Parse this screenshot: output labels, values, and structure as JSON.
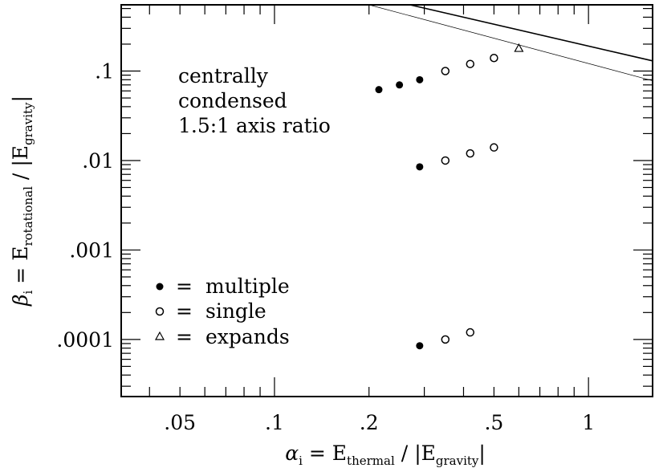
{
  "chart_data": {
    "type": "scatter",
    "x_scale": "log",
    "y_scale": "log",
    "xlim": [
      0.0325,
      1.6
    ],
    "ylim": [
      2.3e-05,
      0.55
    ],
    "x_ticks": [
      {
        "value": 0.05,
        "label": ".05"
      },
      {
        "value": 0.1,
        "label": ".1"
      },
      {
        "value": 0.2,
        "label": ".2"
      },
      {
        "value": 0.5,
        "label": ".5"
      },
      {
        "value": 1,
        "label": "1"
      }
    ],
    "y_ticks": [
      {
        "value": 0.1,
        "label": ".1"
      },
      {
        "value": 0.01,
        "label": ".01"
      },
      {
        "value": 0.001,
        "label": ".001"
      },
      {
        "value": 0.0001,
        "label": ".0001"
      }
    ],
    "xlabel": {
      "symbol": "α",
      "sub": "i",
      "eq": "= E",
      "sub2": "thermal",
      "slash": "/",
      "abs": "|E",
      "sub3": "gravity",
      "close": "|"
    },
    "ylabel": {
      "symbol": "β",
      "sub": "i",
      "eq": "= E",
      "sub2": "rotational",
      "slash": "/",
      "abs": "|E",
      "sub3": "gravity",
      "close": "|"
    },
    "annotation": [
      "centrally",
      "condensed",
      "1.5:1 axis ratio"
    ],
    "legend": {
      "placement": "lower-left",
      "entries": [
        {
          "marker": "filled-circle",
          "label": "multiple"
        },
        {
          "marker": "open-circle",
          "label": "single"
        },
        {
          "marker": "triangle",
          "label": "expands"
        }
      ],
      "eq": "="
    },
    "series": [
      {
        "marker": "filled-circle",
        "points": [
          [
            0.215,
            0.062
          ],
          [
            0.25,
            0.07
          ],
          [
            0.29,
            0.08
          ],
          [
            0.29,
            0.0085
          ],
          [
            0.29,
            8.5e-05
          ]
        ]
      },
      {
        "marker": "open-circle",
        "points": [
          [
            0.35,
            0.1
          ],
          [
            0.42,
            0.12
          ],
          [
            0.5,
            0.14
          ],
          [
            0.35,
            0.01
          ],
          [
            0.42,
            0.012
          ],
          [
            0.5,
            0.014
          ],
          [
            0.35,
            0.0001
          ],
          [
            0.42,
            0.00012
          ]
        ]
      },
      {
        "marker": "triangle",
        "points": [
          [
            0.6,
            0.18
          ]
        ]
      }
    ],
    "lines": [
      {
        "style": "solid",
        "points": [
          [
            0.27,
            0.55
          ],
          [
            1.6,
            0.13
          ]
        ]
      },
      {
        "style": "thin",
        "points": [
          [
            0.2,
            0.55
          ],
          [
            1.6,
            0.078
          ]
        ]
      }
    ]
  }
}
